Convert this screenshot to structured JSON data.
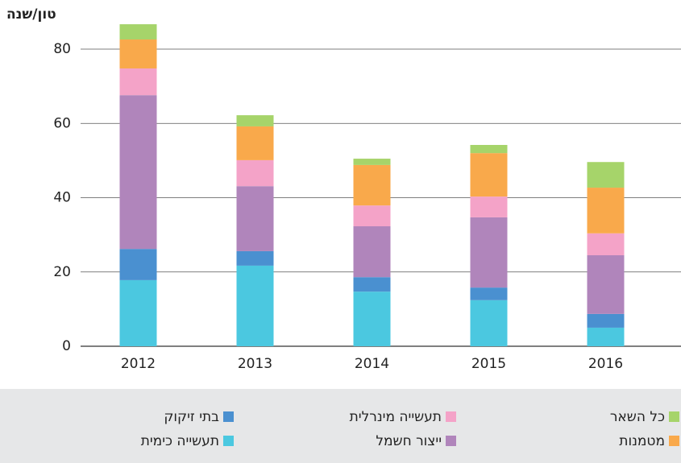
{
  "chart_data": {
    "type": "stacked_bar",
    "y_label": "טון/שנה",
    "categories": [
      "2012",
      "2013",
      "2014",
      "2015",
      "2016"
    ],
    "series": [
      {
        "name": "תעשייה כימית",
        "color": "#4bc8e0",
        "values": [
          17.8,
          21.7,
          14.7,
          12.4,
          5.0
        ]
      },
      {
        "name": "בתי זיקוק",
        "color": "#4a90d0",
        "values": [
          8.4,
          3.9,
          3.9,
          3.4,
          3.7
        ]
      },
      {
        "name": "ייצור חשמל",
        "color": "#b085bb",
        "values": [
          41.4,
          17.5,
          13.7,
          18.9,
          15.8
        ]
      },
      {
        "name": "תעשייה מינרלית",
        "color": "#f4a3c8",
        "values": [
          7.2,
          7.0,
          5.6,
          5.6,
          5.9
        ]
      },
      {
        "name": "מטמנות",
        "color": "#f9a94b",
        "values": [
          7.8,
          9.1,
          10.9,
          11.7,
          12.3
        ]
      },
      {
        "name": "כל השאר",
        "color": "#a6d46a",
        "values": [
          4.1,
          3.0,
          1.7,
          2.2,
          6.9
        ]
      }
    ],
    "ylim": [
      0,
      80
    ],
    "yticks": [
      0,
      20,
      40,
      60,
      80
    ],
    "grid": true
  }
}
